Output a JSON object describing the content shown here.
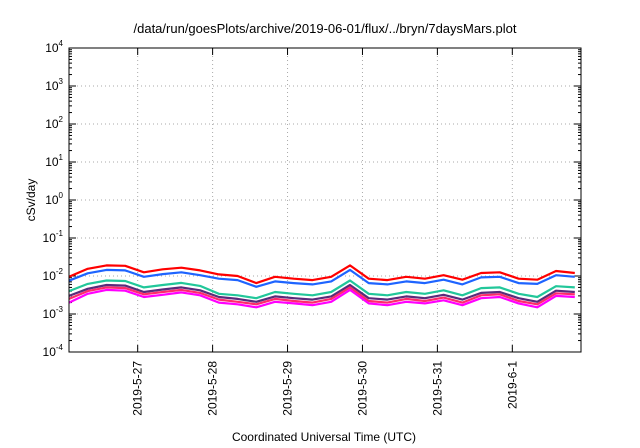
{
  "chart_data": {
    "type": "line",
    "title": "/data/run/goesPlots/archive/2019-06-01/flux/../bryn/7daysMars.plot",
    "xlabel": "Coordinated Universal Time (UTC)",
    "ylabel": "cSv/day",
    "yscale": "log",
    "ylim": [
      0.0001,
      10000
    ],
    "y_ticks": [
      {
        "base": "10",
        "exp": "-4"
      },
      {
        "base": "10",
        "exp": "-3"
      },
      {
        "base": "10",
        "exp": "-2"
      },
      {
        "base": "10",
        "exp": "-1"
      },
      {
        "base": "10",
        "exp": "0"
      },
      {
        "base": "10",
        "exp": "1"
      },
      {
        "base": "10",
        "exp": "2"
      },
      {
        "base": "10",
        "exp": "3"
      },
      {
        "base": "10",
        "exp": "4"
      }
    ],
    "xlim": [
      "2019-05-26T02:00",
      "2019-06-01T22:00"
    ],
    "x_ticks": [
      "2019-5-27",
      "2019-5-28",
      "2019-5-29",
      "2019-5-30",
      "2019-5-31",
      "2019-6-1"
    ],
    "x_hours": [
      0,
      6,
      12,
      18,
      24,
      30,
      36,
      42,
      48,
      54,
      60,
      66,
      72,
      78,
      84,
      90,
      96,
      102,
      108,
      114,
      120,
      126,
      132,
      138,
      144,
      150,
      156,
      162
    ],
    "x_hours_origin": "2019-05-26T02:00",
    "grid": true,
    "legend": "none",
    "series": [
      {
        "color": "#ff0000",
        "values": [
          0.0095,
          0.0155,
          0.019,
          0.0185,
          0.0125,
          0.015,
          0.0165,
          0.014,
          0.011,
          0.01,
          0.0065,
          0.0095,
          0.0085,
          0.0078,
          0.0095,
          0.019,
          0.0085,
          0.0078,
          0.0095,
          0.0085,
          0.0105,
          0.008,
          0.012,
          0.0125,
          0.0085,
          0.008,
          0.0135,
          0.012
        ]
      },
      {
        "color": "#1e64ff",
        "values": [
          0.0075,
          0.0118,
          0.0145,
          0.014,
          0.0095,
          0.0112,
          0.0125,
          0.0105,
          0.0085,
          0.0078,
          0.0052,
          0.0072,
          0.0065,
          0.006,
          0.0072,
          0.0145,
          0.0065,
          0.006,
          0.0072,
          0.0065,
          0.008,
          0.006,
          0.0092,
          0.0095,
          0.0065,
          0.0062,
          0.0105,
          0.0095
        ]
      },
      {
        "color": "#22c79a",
        "values": [
          0.004,
          0.0062,
          0.0076,
          0.0074,
          0.005,
          0.0058,
          0.0066,
          0.0055,
          0.0034,
          0.0031,
          0.0026,
          0.0038,
          0.0034,
          0.0031,
          0.0038,
          0.0076,
          0.0034,
          0.0031,
          0.0038,
          0.0034,
          0.0042,
          0.0031,
          0.0048,
          0.005,
          0.0034,
          0.0028,
          0.0054,
          0.005
        ]
      },
      {
        "color": "#5a2a7a",
        "values": [
          0.003,
          0.0046,
          0.0058,
          0.0056,
          0.0038,
          0.0044,
          0.005,
          0.0042,
          0.0028,
          0.0025,
          0.0021,
          0.0029,
          0.0026,
          0.0024,
          0.0029,
          0.0058,
          0.0026,
          0.0024,
          0.0029,
          0.0026,
          0.0032,
          0.0024,
          0.0036,
          0.0038,
          0.0026,
          0.0021,
          0.0041,
          0.0038
        ]
      },
      {
        "color": "#ff2a6a",
        "values": [
          0.0025,
          0.004,
          0.005,
          0.0048,
          0.0033,
          0.0038,
          0.0043,
          0.0036,
          0.0024,
          0.0021,
          0.0018,
          0.0025,
          0.0022,
          0.002,
          0.0025,
          0.005,
          0.0022,
          0.002,
          0.0025,
          0.0022,
          0.0027,
          0.002,
          0.0031,
          0.0033,
          0.0022,
          0.0018,
          0.0035,
          0.0033
        ]
      },
      {
        "color": "#ff00ff",
        "values": [
          0.002,
          0.0034,
          0.0043,
          0.0041,
          0.0028,
          0.0032,
          0.0037,
          0.0031,
          0.002,
          0.0018,
          0.0015,
          0.0021,
          0.0019,
          0.0017,
          0.0021,
          0.0043,
          0.0019,
          0.0017,
          0.0021,
          0.0019,
          0.0023,
          0.0017,
          0.0026,
          0.0028,
          0.0019,
          0.0015,
          0.003,
          0.0028
        ]
      }
    ]
  }
}
